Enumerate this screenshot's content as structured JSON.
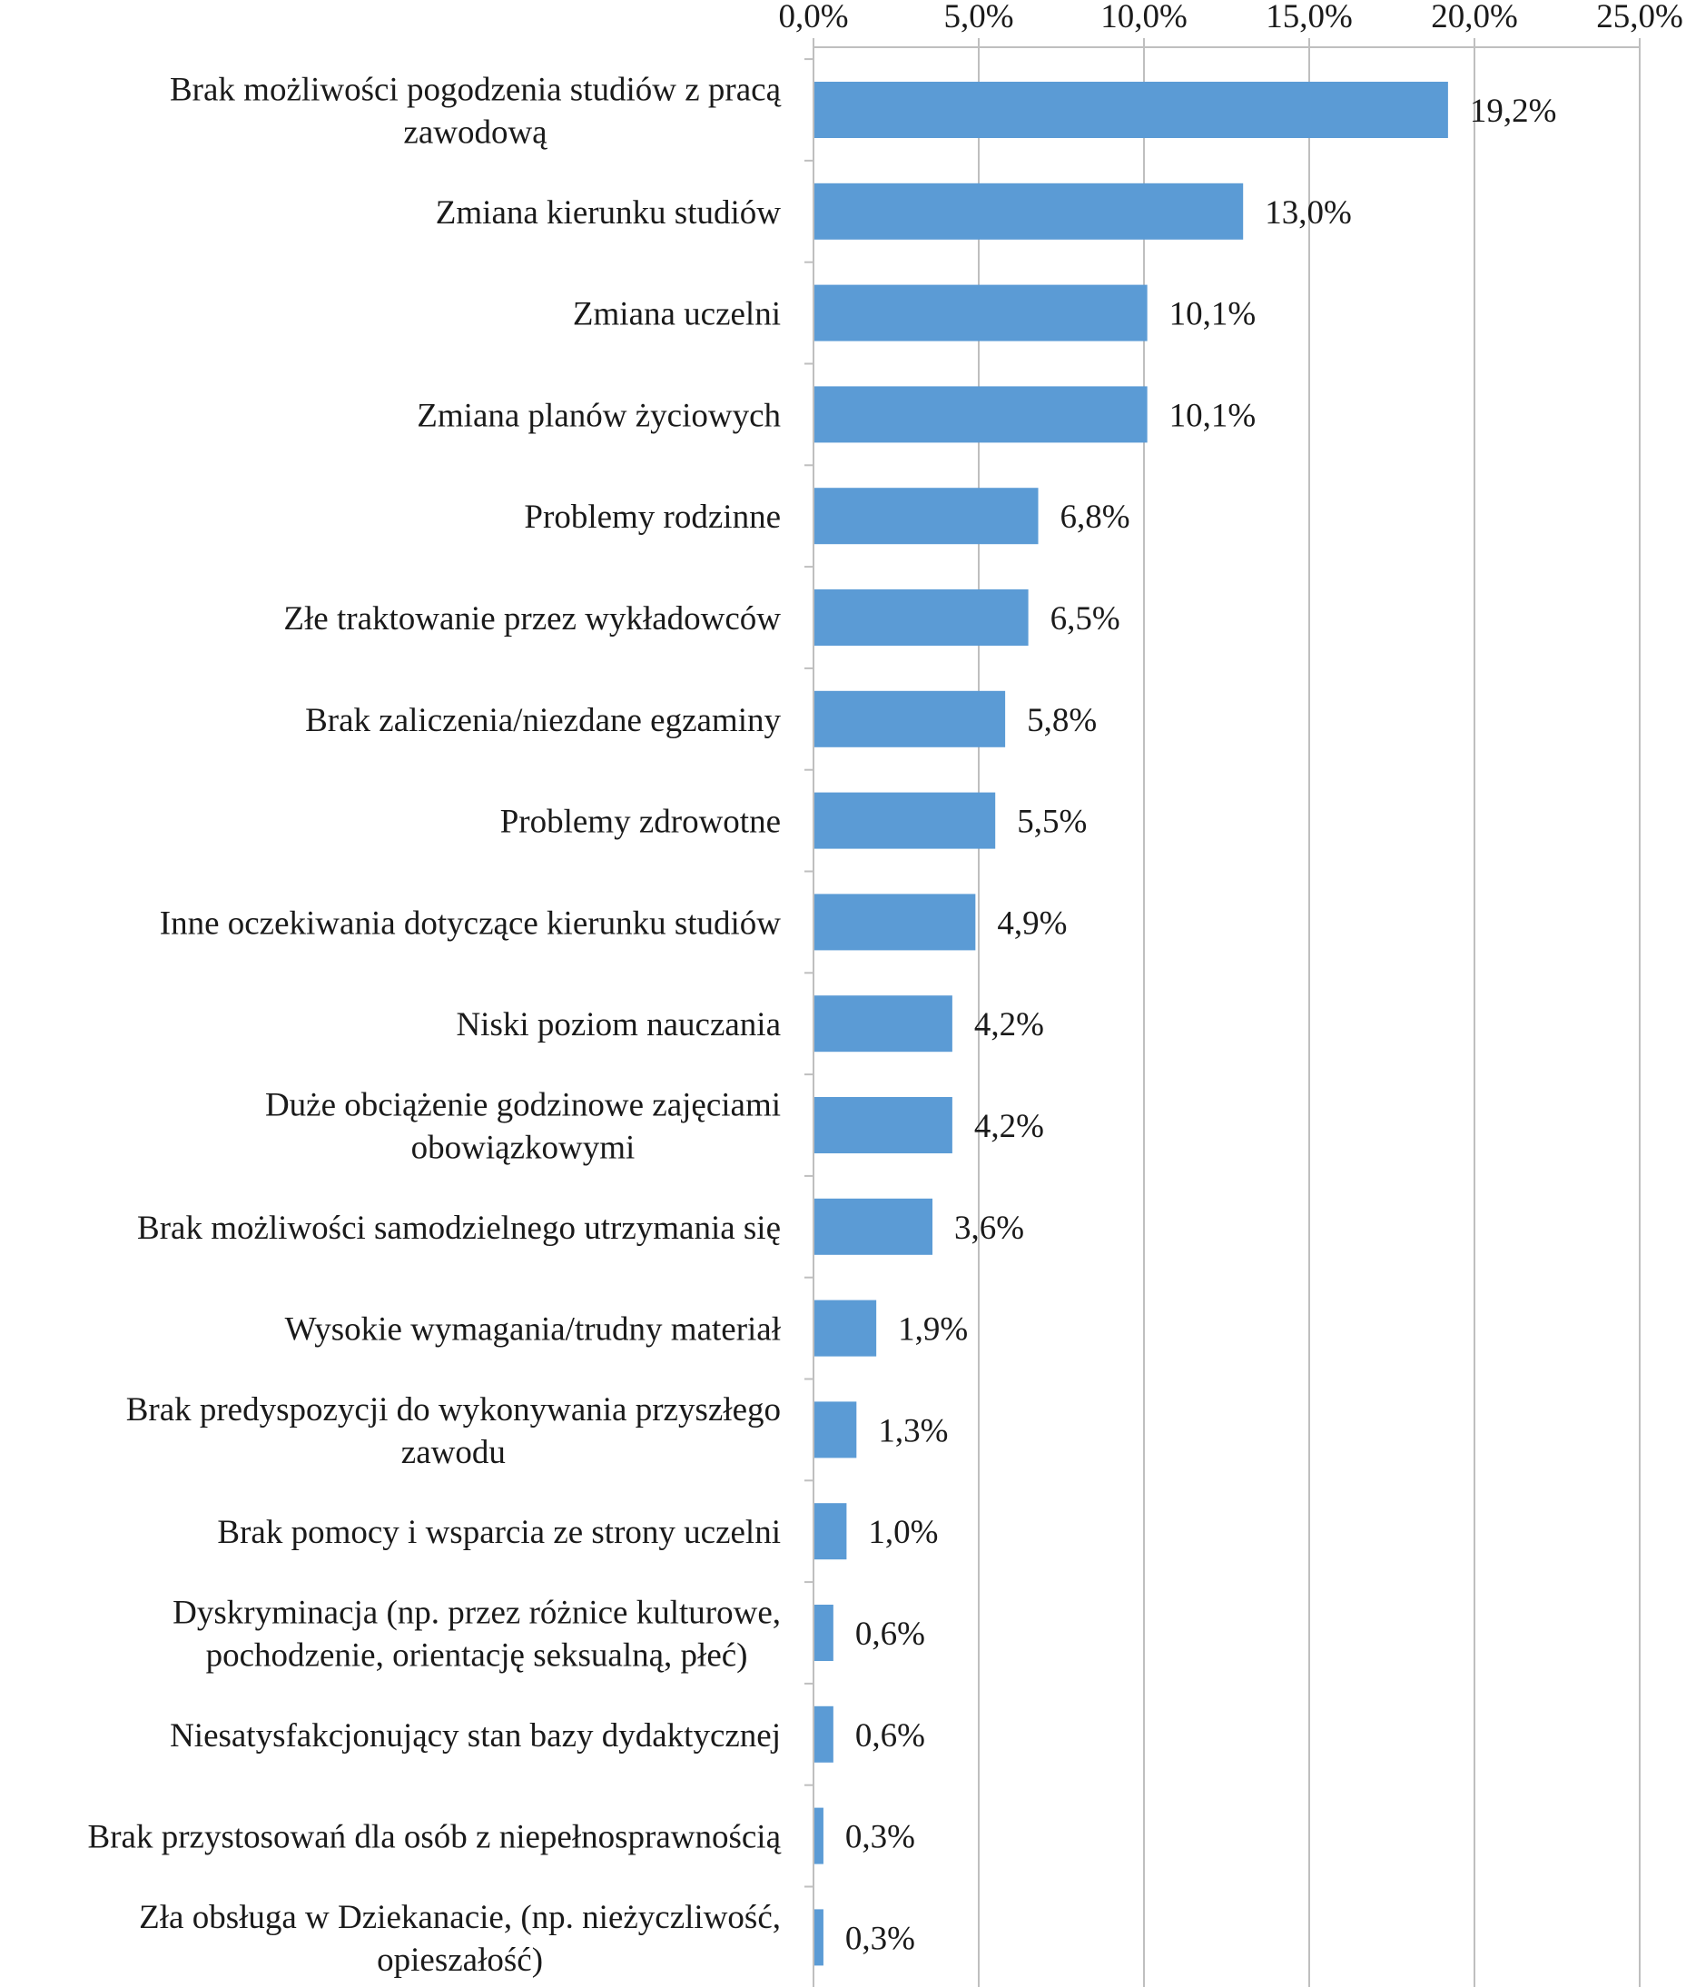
{
  "chart_data": {
    "type": "bar",
    "orientation": "horizontal",
    "categories": [
      [
        "Brak możliwości pogodzenia studiów z pracą",
        "zawodową"
      ],
      [
        "Zmiana kierunku studiów"
      ],
      [
        "Zmiana uczelni"
      ],
      [
        "Zmiana planów życiowych"
      ],
      [
        "Problemy rodzinne"
      ],
      [
        "Złe traktowanie przez wykładowców"
      ],
      [
        "Brak zaliczenia/niezdane egzaminy"
      ],
      [
        "Problemy zdrowotne"
      ],
      [
        "Inne oczekiwania dotyczące kierunku studiów"
      ],
      [
        "Niski poziom nauczania"
      ],
      [
        "Duże obciążenie godzinowe zajęciami",
        "obowiązkowymi"
      ],
      [
        "Brak możliwości samodzielnego utrzymania się"
      ],
      [
        "Wysokie wymagania/trudny materiał"
      ],
      [
        "Brak predyspozycji do wykonywania przyszłego",
        "zawodu"
      ],
      [
        "Brak pomocy i wsparcia ze strony uczelni"
      ],
      [
        "Dyskryminacja (np. przez różnice kulturowe,",
        "pochodzenie, orientację seksualną, płeć)"
      ],
      [
        "Niesatysfakcjonujący stan bazy dydaktycznej"
      ],
      [
        "Brak przystosowań dla osób z niepełnosprawnością"
      ],
      [
        "Zła obsługa w Dziekanacie,  (np. nieżyczliwość,",
        "opieszałość)"
      ]
    ],
    "values": [
      19.2,
      13.0,
      10.1,
      10.1,
      6.8,
      6.5,
      5.8,
      5.5,
      4.9,
      4.2,
      4.2,
      3.6,
      1.9,
      1.3,
      1.0,
      0.6,
      0.6,
      0.3,
      0.3
    ],
    "value_labels": [
      "19,2%",
      "13,0%",
      "10,1%",
      "10,1%",
      "6,8%",
      "6,5%",
      "5,8%",
      "5,5%",
      "4,9%",
      "4,2%",
      "4,2%",
      "3,6%",
      "1,9%",
      "1,3%",
      "1,0%",
      "0,6%",
      "0,6%",
      "0,3%",
      "0,3%"
    ],
    "x_ticks": [
      0,
      5,
      10,
      15,
      20,
      25
    ],
    "x_tick_labels": [
      "0,0%",
      "5,0%",
      "10,0%",
      "15,0%",
      "20,0%",
      "25,0%"
    ],
    "xlim": [
      0,
      25
    ],
    "x_axis_position": "top",
    "grid": true,
    "bar_color": "#5b9bd5",
    "grid_color": "#bfbfbf",
    "text_color": "#1a1a1a",
    "title": "",
    "xlabel": "",
    "ylabel": ""
  }
}
